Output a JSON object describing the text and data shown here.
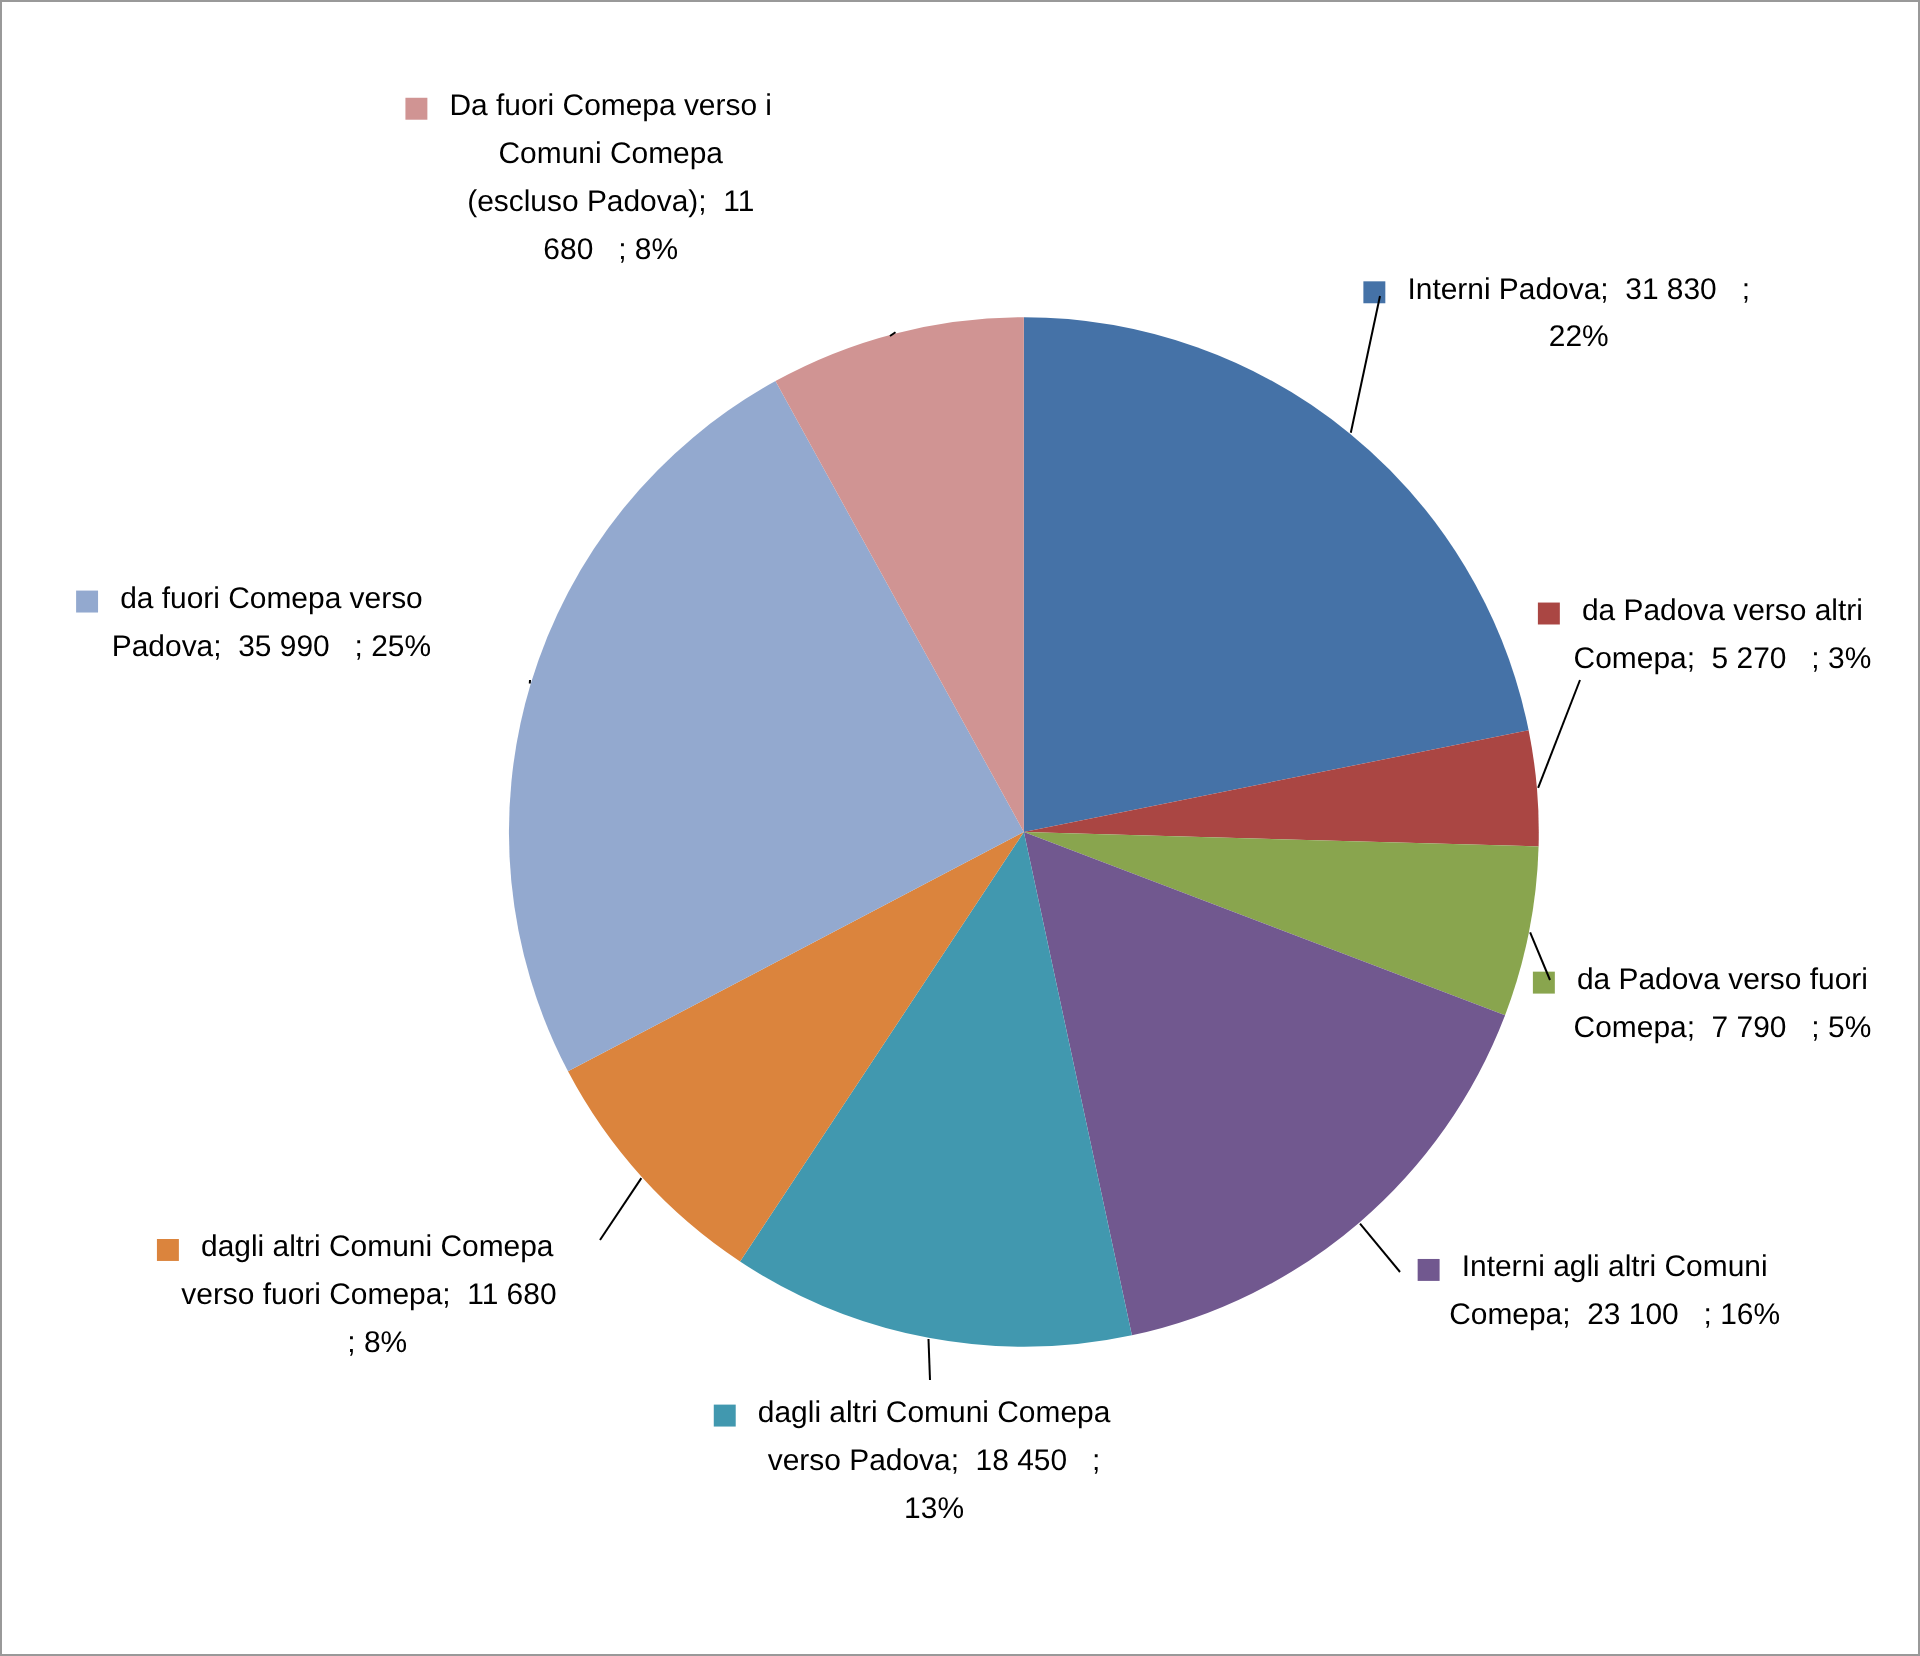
{
  "chart_data": {
    "type": "pie",
    "categories": [
      "Interni Padova",
      "da Padova verso altri Comepa",
      "da Padova verso fuori Comepa",
      "Interni agli altri Comuni Comepa",
      "dagli altri Comuni Comepa verso Padova",
      "dagli altri Comuni Comepa verso fuori Comepa",
      "da fuori Comepa verso Padova",
      "Da fuori Comepa verso i Comuni Comepa (escluso Padova)"
    ],
    "values": [
      31830,
      5270,
      7790,
      23100,
      18450,
      11680,
      35990,
      11680
    ],
    "value_labels": [
      "31 830   ; 22%",
      "5 270   ; 3%",
      "7 790   ; 5%",
      "23 100   ; 16%",
      "18 450   ; 13%",
      "11 680   ; 8%",
      "35 990   ; 25%",
      "11 680   ; 8%"
    ],
    "colors": [
      "#4572a7",
      "#aa4643",
      "#89a54e",
      "#71588f",
      "#4198af",
      "#db843d",
      "#93a9cf",
      "#d09493"
    ],
    "legend": "right"
  }
}
